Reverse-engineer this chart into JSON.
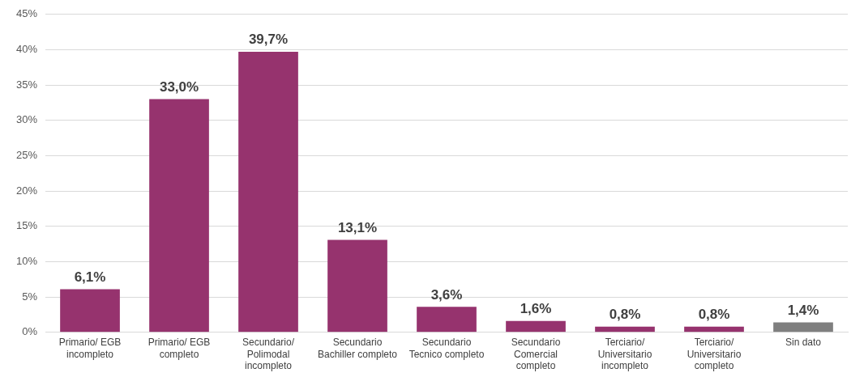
{
  "chart_data": {
    "type": "bar",
    "categories": [
      "Primario/ EGB incompleto",
      "Primario/ EGB completo",
      "Secundario/ Polimodal incompleto",
      "Secundario Bachiller completo",
      "Secundario Tecnico completo",
      "Secundario Comercial completo",
      "Terciario/ Universitario incompleto",
      "Terciario/ Universitario completo",
      "Sin dato"
    ],
    "values": [
      6.1,
      33.0,
      39.7,
      13.1,
      3.6,
      1.6,
      0.8,
      0.8,
      1.4
    ],
    "colors": [
      "#96336e",
      "#96336e",
      "#96336e",
      "#96336e",
      "#96336e",
      "#96336e",
      "#96336e",
      "#96336e",
      "#7f7f7f"
    ],
    "value_labels": [
      "6,1%",
      "33,0%",
      "39,7%",
      "13,1%",
      "3,6%",
      "1,6%",
      "0,8%",
      "0,8%",
      "1,4%"
    ],
    "ylim": [
      0,
      45
    ],
    "yticks": [
      {
        "value": 0,
        "label": "0%"
      },
      {
        "value": 5,
        "label": "5%"
      },
      {
        "value": 10,
        "label": "10%"
      },
      {
        "value": 15,
        "label": "15%"
      },
      {
        "value": 20,
        "label": "20%"
      },
      {
        "value": 25,
        "label": "25%"
      },
      {
        "value": 30,
        "label": "30%"
      },
      {
        "value": 35,
        "label": "35%"
      },
      {
        "value": 40,
        "label": "40%"
      },
      {
        "value": 45,
        "label": "45%"
      }
    ],
    "grid": "y",
    "legend": false
  }
}
